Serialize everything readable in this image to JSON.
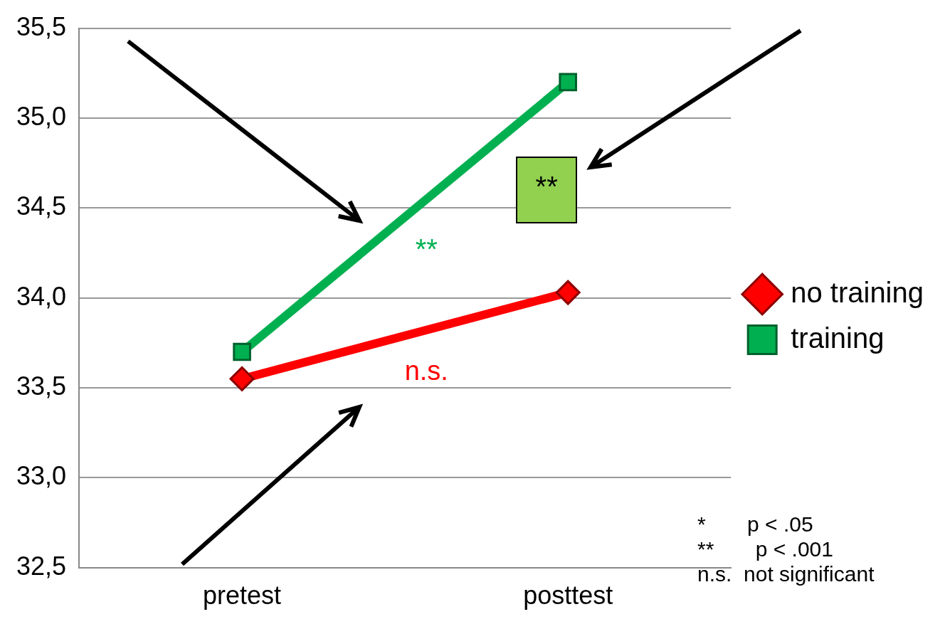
{
  "chart_data": {
    "type": "line",
    "categories": [
      "pretest",
      "posttest"
    ],
    "series": [
      {
        "name": "no training",
        "color": "#ff0000",
        "values": [
          33.55,
          34.03
        ],
        "marker": "diamond"
      },
      {
        "name": "training",
        "color": "#00b050",
        "values": [
          33.7,
          35.2
        ],
        "marker": "square"
      }
    ],
    "ylim": [
      32.5,
      35.5
    ],
    "yticks": [
      {
        "value": 32.5,
        "label": "32,5"
      },
      {
        "value": 33,
        "label": "33,0"
      },
      {
        "value": 33.5,
        "label": "33,5"
      },
      {
        "value": 34,
        "label": "34,0"
      },
      {
        "value": 34.5,
        "label": "34,5"
      },
      {
        "value": 35,
        "label": "35,0"
      },
      {
        "value": 35.5,
        "label": "35,5"
      }
    ],
    "grid": "y",
    "legend": "right",
    "line_style": "solid",
    "annotations": [
      "**",
      "n.s.",
      "**",
      "*       p < .05",
      "**       p < .001",
      "n.s.  not significant"
    ]
  }
}
